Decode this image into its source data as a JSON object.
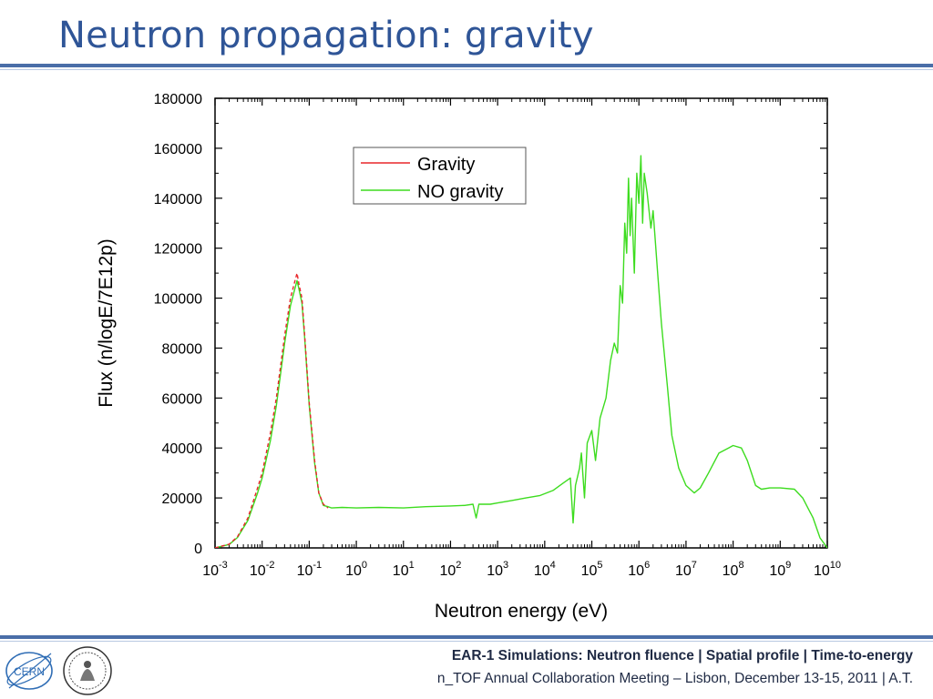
{
  "slide": {
    "title": "Neutron propagation: gravity"
  },
  "footer": {
    "line1": "EAR-1 Simulations: Neutron fluence | Spatial profile | Time-to-energy",
    "line2": "n_TOF Annual Collaboration Meeting – Lisbon, December 13-15, 2011 | A.T."
  },
  "logos": {
    "cern_text": "CERN",
    "cern_icon": "cern-logo-icon",
    "university_icon": "university-seal-icon"
  },
  "chart_data": {
    "type": "line",
    "title": "",
    "xlabel": "Neutron energy (eV)",
    "ylabel": "Flux (n/logE/7E12p)",
    "xscale": "log",
    "xlim": [
      0.001,
      10000000000
    ],
    "ylim": [
      0,
      180000
    ],
    "x_ticks": [
      {
        "base": "10",
        "exp": "-3"
      },
      {
        "base": "10",
        "exp": "-2"
      },
      {
        "base": "10",
        "exp": "-1"
      },
      {
        "base": "10",
        "exp": "0"
      },
      {
        "base": "10",
        "exp": "1"
      },
      {
        "base": "10",
        "exp": "2"
      },
      {
        "base": "10",
        "exp": "3"
      },
      {
        "base": "10",
        "exp": "4"
      },
      {
        "base": "10",
        "exp": "5"
      },
      {
        "base": "10",
        "exp": "6"
      },
      {
        "base": "10",
        "exp": "7"
      },
      {
        "base": "10",
        "exp": "8"
      },
      {
        "base": "10",
        "exp": "9"
      },
      {
        "base": "10",
        "exp": "10"
      }
    ],
    "y_ticks": [
      "0",
      "20000",
      "40000",
      "60000",
      "80000",
      "100000",
      "120000",
      "140000",
      "160000",
      "180000"
    ],
    "grid": false,
    "legend_position": "top-left",
    "series": [
      {
        "name": "Gravity",
        "color": "#e8262a",
        "style": "dashed",
        "points": [
          [
            0.001,
            0
          ],
          [
            0.002,
            1500
          ],
          [
            0.003,
            4500
          ],
          [
            0.005,
            12000
          ],
          [
            0.008,
            24000
          ],
          [
            0.01,
            30000
          ],
          [
            0.015,
            46000
          ],
          [
            0.02,
            60000
          ],
          [
            0.03,
            85000
          ],
          [
            0.04,
            100000
          ],
          [
            0.05,
            107000
          ],
          [
            0.055,
            110000
          ],
          [
            0.06,
            106000
          ],
          [
            0.07,
            100000
          ],
          [
            0.08,
            85000
          ],
          [
            0.1,
            58000
          ],
          [
            0.13,
            35000
          ],
          [
            0.16,
            22000
          ],
          [
            0.2,
            17500
          ],
          [
            0.25,
            16000
          ]
        ]
      },
      {
        "name": "NO gravity",
        "color": "#3ddc1f",
        "style": "solid",
        "points": [
          [
            0.001,
            0
          ],
          [
            0.002,
            1400
          ],
          [
            0.003,
            4200
          ],
          [
            0.005,
            11000
          ],
          [
            0.008,
            22000
          ],
          [
            0.01,
            28000
          ],
          [
            0.015,
            43000
          ],
          [
            0.02,
            57000
          ],
          [
            0.03,
            82000
          ],
          [
            0.04,
            97000
          ],
          [
            0.05,
            104000
          ],
          [
            0.055,
            107000
          ],
          [
            0.06,
            104000
          ],
          [
            0.07,
            98000
          ],
          [
            0.08,
            84000
          ],
          [
            0.1,
            57000
          ],
          [
            0.13,
            34000
          ],
          [
            0.16,
            22000
          ],
          [
            0.2,
            17000
          ],
          [
            0.25,
            16500
          ],
          [
            0.3,
            16000
          ],
          [
            0.5,
            16200
          ],
          [
            1,
            16000
          ],
          [
            3,
            16200
          ],
          [
            10,
            16000
          ],
          [
            30,
            16500
          ],
          [
            100,
            16800
          ],
          [
            200,
            17000
          ],
          [
            300,
            17500
          ],
          [
            350,
            12000
          ],
          [
            400,
            17500
          ],
          [
            700,
            17500
          ],
          [
            1000,
            18000
          ],
          [
            2000,
            19000
          ],
          [
            4000,
            20000
          ],
          [
            8000,
            21000
          ],
          [
            15000,
            23000
          ],
          [
            25000,
            26000
          ],
          [
            35000,
            28000
          ],
          [
            40000,
            10000
          ],
          [
            45000,
            25000
          ],
          [
            55000,
            32000
          ],
          [
            60000,
            38000
          ],
          [
            70000,
            20000
          ],
          [
            80000,
            42000
          ],
          [
            100000,
            47000
          ],
          [
            120000,
            35000
          ],
          [
            150000,
            52000
          ],
          [
            200000,
            60000
          ],
          [
            250000,
            75000
          ],
          [
            300000,
            82000
          ],
          [
            350000,
            78000
          ],
          [
            400000,
            105000
          ],
          [
            450000,
            98000
          ],
          [
            500000,
            130000
          ],
          [
            550000,
            118000
          ],
          [
            600000,
            148000
          ],
          [
            650000,
            125000
          ],
          [
            700000,
            140000
          ],
          [
            800000,
            110000
          ],
          [
            900000,
            150000
          ],
          [
            1000000,
            138000
          ],
          [
            1100000,
            157000
          ],
          [
            1200000,
            130000
          ],
          [
            1300000,
            150000
          ],
          [
            1500000,
            142000
          ],
          [
            1800000,
            128000
          ],
          [
            2000000,
            135000
          ],
          [
            2500000,
            110000
          ],
          [
            3000000,
            90000
          ],
          [
            4000000,
            65000
          ],
          [
            5000000,
            45000
          ],
          [
            7000000,
            32000
          ],
          [
            10000000,
            25000
          ],
          [
            15000000,
            22000
          ],
          [
            20000000,
            24000
          ],
          [
            30000000,
            30000
          ],
          [
            50000000,
            38000
          ],
          [
            80000000,
            40000
          ],
          [
            100000000,
            41000
          ],
          [
            150000000,
            40000
          ],
          [
            200000000,
            35000
          ],
          [
            300000000,
            25000
          ],
          [
            400000000,
            23500
          ],
          [
            600000000,
            24000
          ],
          [
            1000000000,
            24000
          ],
          [
            2000000000,
            23500
          ],
          [
            3000000000,
            20000
          ],
          [
            5000000000,
            12000
          ],
          [
            7000000000,
            4000
          ],
          [
            10000000000,
            0
          ]
        ]
      }
    ]
  }
}
